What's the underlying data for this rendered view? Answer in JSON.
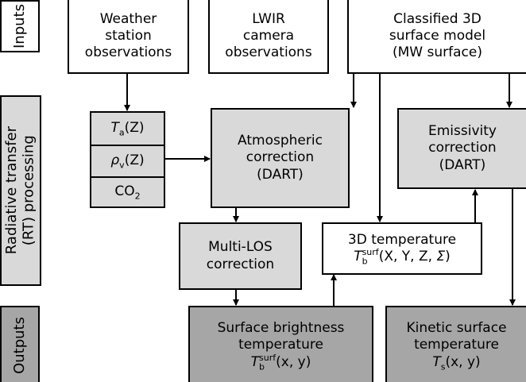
{
  "rows": {
    "inputs": "Inputs",
    "processing": [
      "Radiative transfer",
      "(RT) processing"
    ],
    "outputs": "Outputs"
  },
  "nodes": {
    "weather": {
      "lines": [
        "Weather",
        "station",
        "observations"
      ]
    },
    "lwir": {
      "lines": [
        "LWIR",
        "camera",
        "observations"
      ]
    },
    "model": {
      "lines": [
        "Classified 3D",
        "surface model",
        "(MW surface)"
      ]
    },
    "ta": {
      "symbol": "T",
      "sub": "a",
      "arg": "(Z)"
    },
    "rho": {
      "symbol": "ρ",
      "sub": "v",
      "arg": "(Z)"
    },
    "co2": {
      "symbol": "CO",
      "sub": "2"
    },
    "atm": {
      "lines": [
        "Atmospheric",
        "correction",
        "(DART)"
      ]
    },
    "emis": {
      "lines": [
        "Emissivity",
        "correction",
        "(DART)"
      ]
    },
    "los": {
      "lines": [
        "Multi-LOS",
        "correction"
      ]
    },
    "temp3d": {
      "lines": [
        "3D temperature"
      ],
      "symbol": "T",
      "sub": "b",
      "sup": "surf",
      "arg": "(X, Y, Z, ",
      "arg_symbol": "Σ",
      "arg_end": ")"
    },
    "brightness": {
      "lines": [
        "Surface brightness",
        "temperature"
      ],
      "symbol": "T",
      "sub": "b",
      "sup": "surf",
      "arg": "(x, y)"
    },
    "kinetic": {
      "lines": [
        "Kinetic surface",
        "temperature"
      ],
      "symbol": "T",
      "sub": "s",
      "arg": "(x, y)"
    }
  }
}
